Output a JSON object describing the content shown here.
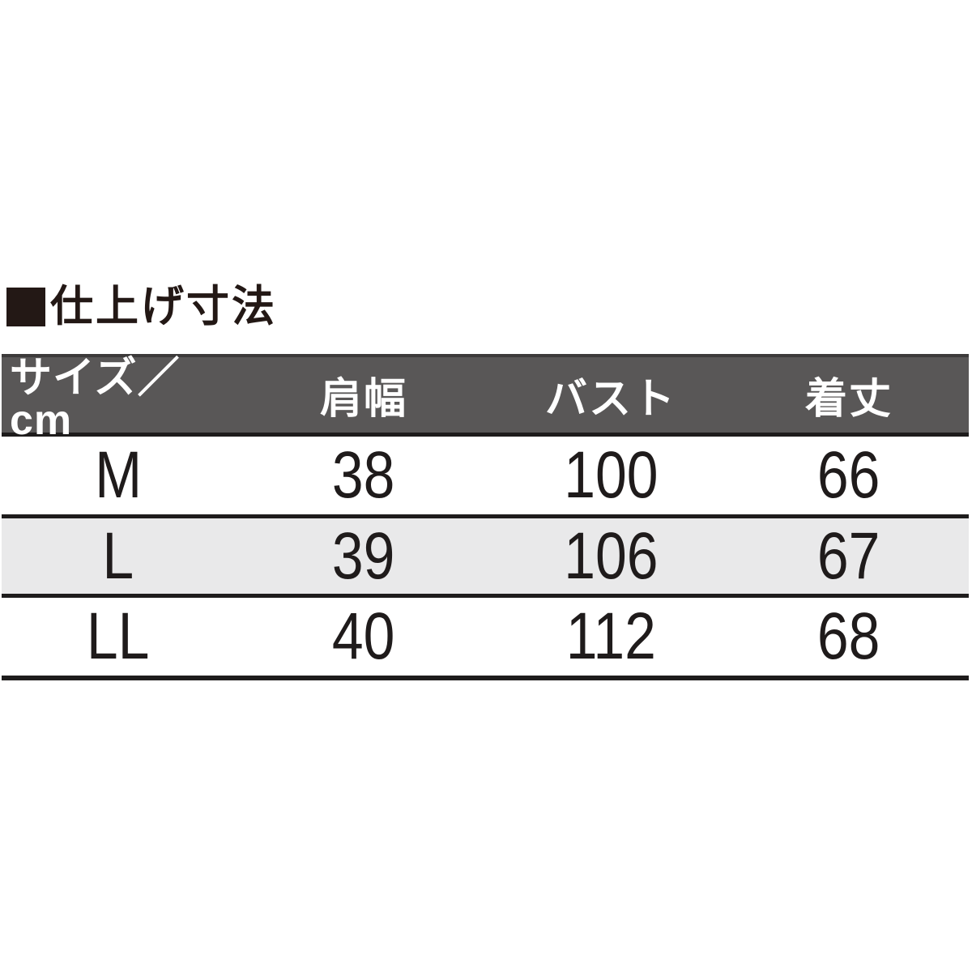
{
  "title": {
    "icon": "black-square-bullet",
    "text": "仕上げ寸法"
  },
  "colors": {
    "header_bg": "#595757",
    "header_text": "#ffffff",
    "shaded_row_bg": "#e9e9ea",
    "rule_line": "#1e1c1c",
    "title_black": "#231815",
    "page_bg": "#ffffff"
  },
  "table": {
    "unit": "cm",
    "headers": [
      "サイズ／cm",
      "肩幅",
      "バスト",
      "着丈"
    ],
    "rows": [
      {
        "size": "M",
        "shoulder_width": "38",
        "bust": "100",
        "length": "66"
      },
      {
        "size": "L",
        "shoulder_width": "39",
        "bust": "106",
        "length": "67"
      },
      {
        "size": "LL",
        "shoulder_width": "40",
        "bust": "112",
        "length": "68"
      }
    ]
  }
}
